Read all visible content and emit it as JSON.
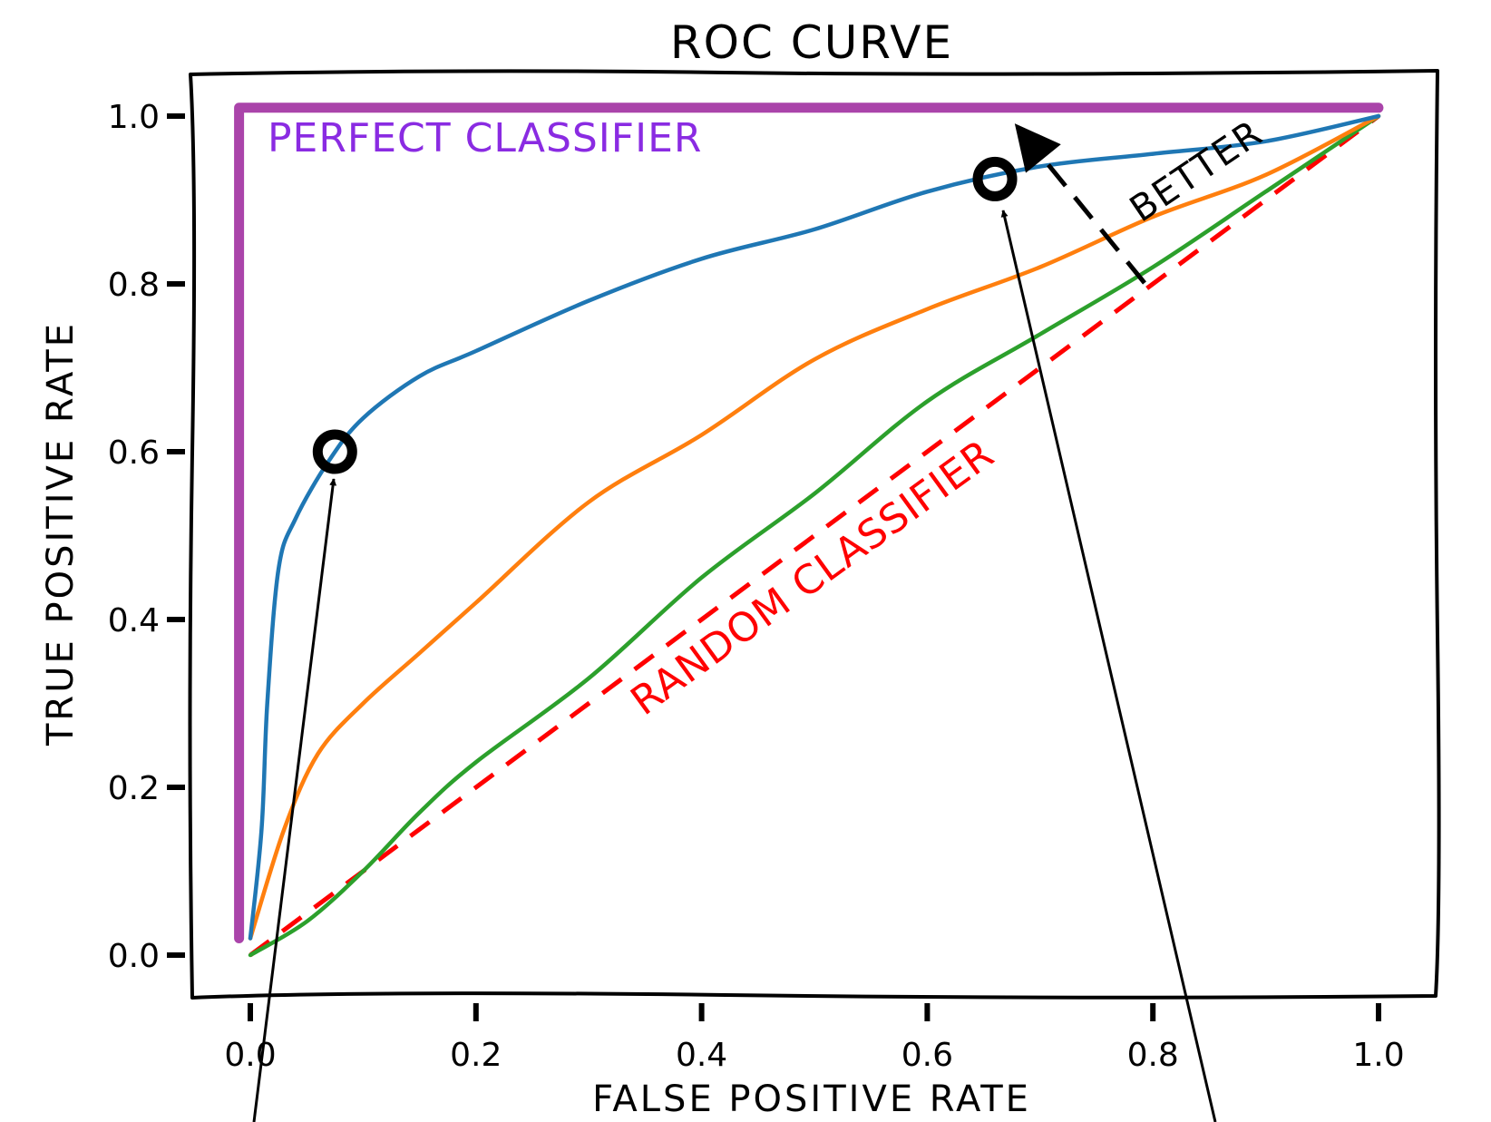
{
  "colors": {
    "perfect": "#aa44aa",
    "perfect_label": "#8a2be2",
    "random": "#ff0000",
    "blue": "#1f77b4",
    "orange": "#ff7f0e",
    "green": "#2ca02c"
  },
  "chart_data": {
    "type": "line",
    "title": "ROC CURVE",
    "xlabel": "FALSE POSITIVE RATE",
    "ylabel": "TRUE POSITIVE RATE",
    "xlim": [
      0,
      1
    ],
    "ylim": [
      0,
      1
    ],
    "xticks": [
      "0.0",
      "0.2",
      "0.4",
      "0.6",
      "0.8",
      "1.0"
    ],
    "yticks": [
      "0.0",
      "0.2",
      "0.4",
      "0.6",
      "0.8",
      "1.0"
    ],
    "grid": false,
    "series": [
      {
        "key": "perfect",
        "name": "PERFECT CLASSIFIER",
        "color": "#aa44aa",
        "points": [
          [
            -0.01,
            0.02
          ],
          [
            -0.01,
            1.01
          ],
          [
            1.0,
            1.01
          ]
        ]
      },
      {
        "key": "random",
        "name": "RANDOM CLASSIFIER",
        "color": "#ff0000",
        "dashed": true,
        "points": [
          [
            0.0,
            0.0
          ],
          [
            1.0,
            1.0
          ]
        ]
      },
      {
        "key": "blue",
        "color": "#1f77b4",
        "points": [
          [
            0.0,
            0.02
          ],
          [
            0.01,
            0.15
          ],
          [
            0.015,
            0.3
          ],
          [
            0.025,
            0.46
          ],
          [
            0.04,
            0.52
          ],
          [
            0.07,
            0.59
          ],
          [
            0.1,
            0.64
          ],
          [
            0.15,
            0.69
          ],
          [
            0.2,
            0.72
          ],
          [
            0.3,
            0.78
          ],
          [
            0.4,
            0.83
          ],
          [
            0.5,
            0.865
          ],
          [
            0.6,
            0.91
          ],
          [
            0.7,
            0.94
          ],
          [
            0.8,
            0.955
          ],
          [
            0.9,
            0.97
          ],
          [
            1.0,
            1.0
          ]
        ]
      },
      {
        "key": "orange",
        "color": "#ff7f0e",
        "points": [
          [
            0.0,
            0.02
          ],
          [
            0.03,
            0.15
          ],
          [
            0.06,
            0.24
          ],
          [
            0.1,
            0.3
          ],
          [
            0.15,
            0.36
          ],
          [
            0.2,
            0.42
          ],
          [
            0.3,
            0.54
          ],
          [
            0.4,
            0.62
          ],
          [
            0.5,
            0.71
          ],
          [
            0.6,
            0.77
          ],
          [
            0.7,
            0.82
          ],
          [
            0.8,
            0.88
          ],
          [
            0.9,
            0.93
          ],
          [
            1.0,
            1.0
          ]
        ]
      },
      {
        "key": "green",
        "color": "#2ca02c",
        "points": [
          [
            0.0,
            0.0
          ],
          [
            0.05,
            0.04
          ],
          [
            0.1,
            0.1
          ],
          [
            0.15,
            0.17
          ],
          [
            0.2,
            0.23
          ],
          [
            0.3,
            0.33
          ],
          [
            0.4,
            0.45
          ],
          [
            0.5,
            0.55
          ],
          [
            0.6,
            0.66
          ],
          [
            0.7,
            0.74
          ],
          [
            0.8,
            0.82
          ],
          [
            0.9,
            0.91
          ],
          [
            1.0,
            1.0
          ]
        ]
      }
    ],
    "markers": [
      {
        "name": "threshold-point-low",
        "x": 0.075,
        "y": 0.6
      },
      {
        "name": "threshold-point-high",
        "x": 0.66,
        "y": 0.925
      }
    ],
    "annotations": {
      "perfect_label": "PERFECT CLASSIFIER",
      "random_label": "RANDOM CLASSIFIER",
      "better_label": "BETTER"
    }
  }
}
